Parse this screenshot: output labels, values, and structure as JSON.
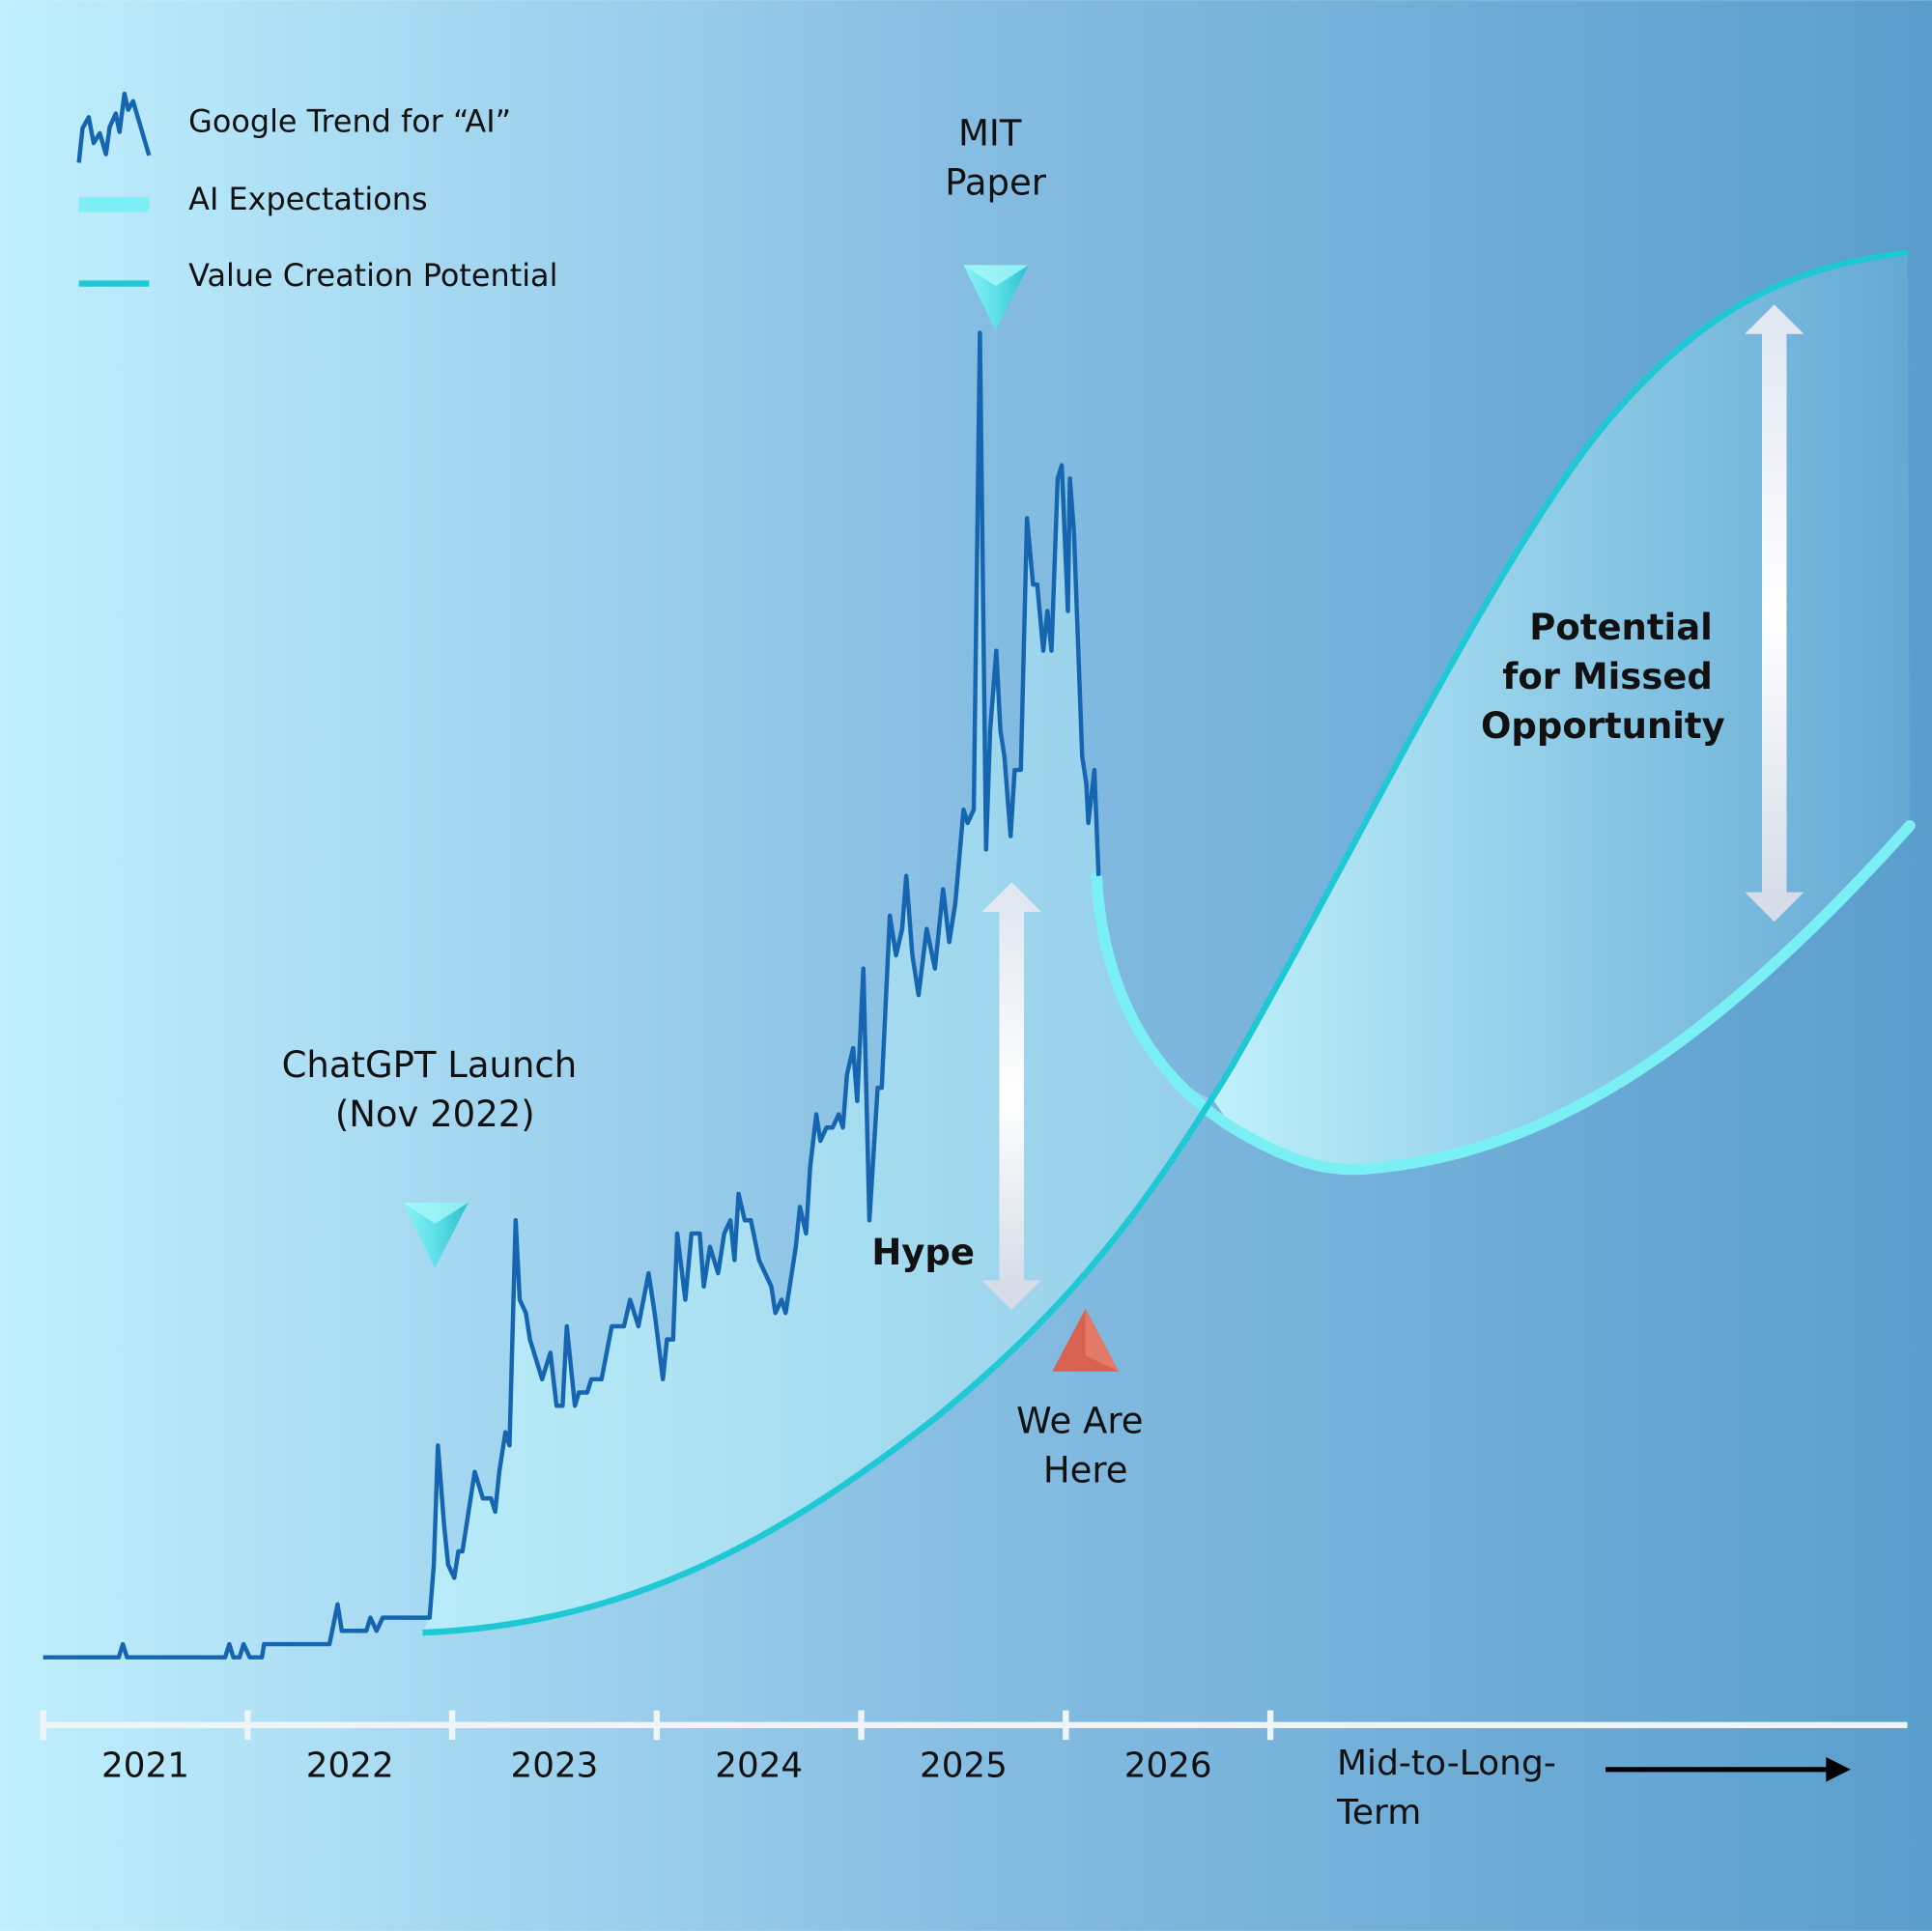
{
  "colors": {
    "background_left": "#c0effd",
    "background_right": "#5a9ecd",
    "trend": "#1565b0",
    "expectations": "#7af0f5",
    "value_creation": "#1ec8d4",
    "marker_cyan": "#4fdbe4",
    "marker_red": "#d9614f"
  },
  "chart_data": {
    "type": "line",
    "title": "",
    "legend_placement": "top-left",
    "legend": [
      {
        "label": "Google Trend for “AI”",
        "icon": "jagged-line-icon"
      },
      {
        "label": "AI Expectations",
        "icon": "thick-line-icon"
      },
      {
        "label": "Value Creation Potential",
        "icon": "line-icon"
      }
    ],
    "x_ticks": [
      "2021",
      "2022",
      "2023",
      "2024",
      "2025",
      "2026"
    ],
    "x_tail_label": "Mid-to-Long-Term",
    "grid": false,
    "series": [
      {
        "name": "Google Trend for “AI”",
        "x": [
          2021.0,
          2021.37,
          2021.39,
          2021.41,
          2021.89,
          2021.91,
          2021.93,
          2021.96,
          2021.98,
          2022.01,
          2022.07,
          2022.08,
          2022.4,
          2022.44,
          2022.46,
          2022.58,
          2022.6,
          2022.63,
          2022.66,
          2022.89,
          2022.91,
          2022.93,
          2022.96,
          2022.98,
          2023.01,
          2023.03,
          2023.05,
          2023.08,
          2023.11,
          2023.15,
          2023.19,
          2023.21,
          2023.23,
          2023.26,
          2023.28,
          2023.31,
          2023.33,
          2023.36,
          2023.38,
          2023.42,
          2023.44,
          2023.48,
          2023.51,
          2023.54,
          2023.56,
          2023.6,
          2023.62,
          2023.66,
          2023.68,
          2023.73,
          2023.78,
          2023.84,
          2023.87,
          2023.91,
          2023.96,
          2023.99,
          2024.03,
          2024.05,
          2024.08,
          2024.1,
          2024.14,
          2024.17,
          2024.21,
          2024.23,
          2024.26,
          2024.3,
          2024.33,
          2024.36,
          2024.38,
          2024.4,
          2024.43,
          2024.46,
          2024.5,
          2024.56,
          2024.58,
          2024.61,
          2024.63,
          2024.68,
          2024.7,
          2024.73,
          2024.75,
          2024.78,
          2024.8,
          2024.83,
          2024.86,
          2024.89,
          2024.91,
          2024.93,
          2024.96,
          2024.98,
          2025.01,
          2025.04,
          2025.08,
          2025.1,
          2025.14,
          2025.17,
          2025.2,
          2025.22,
          2025.25,
          2025.28,
          2025.32,
          2025.36,
          2025.4,
          2025.43,
          2025.46,
          2025.5,
          2025.52,
          2025.55,
          2025.58,
          2025.61,
          2025.63,
          2025.66,
          2025.68,
          2025.7,
          2025.73,
          2025.75,
          2025.78,
          2025.81,
          2025.84,
          2025.86,
          2025.89,
          2025.91,
          2025.93,
          2025.96,
          2025.98,
          2026.01,
          2026.02,
          2026.04,
          2026.08,
          2026.1,
          2026.11,
          2026.14,
          2026.16
        ],
        "y": [
          0,
          0,
          1,
          0,
          0,
          1,
          0,
          0,
          1,
          0,
          0,
          1,
          1,
          4,
          2,
          2,
          3,
          2,
          3,
          3,
          7,
          16,
          10,
          7,
          6,
          8,
          8,
          11,
          14,
          12,
          12,
          11,
          14,
          17,
          16,
          33,
          27,
          26,
          24,
          22,
          21,
          23,
          19,
          19,
          25,
          19,
          20,
          20,
          21,
          21,
          25,
          25,
          27,
          25,
          29,
          26,
          21,
          24,
          24,
          32,
          27,
          32,
          32,
          28,
          31,
          29,
          32,
          33,
          30,
          35,
          33,
          33,
          30,
          28,
          26,
          27,
          26,
          31,
          34,
          32,
          37,
          41,
          39,
          40,
          40,
          41,
          40,
          44,
          46,
          42,
          52,
          33,
          43,
          43,
          56,
          53,
          55,
          59,
          53,
          50,
          55,
          52,
          58,
          54,
          57,
          64,
          63,
          64,
          100,
          61,
          70,
          76,
          70,
          68,
          62,
          67,
          67,
          86,
          81,
          81,
          76,
          79,
          76,
          89,
          90,
          79,
          89,
          85,
          68,
          66,
          63,
          67,
          59
        ]
      },
      {
        "name": "AI Expectations"
      },
      {
        "name": "Value Creation Potential"
      }
    ],
    "annotations": {
      "chatgpt": [
        "ChatGPT Launch",
        "(Nov 2022)"
      ],
      "mit": [
        "MIT",
        "Paper"
      ],
      "here": [
        "We Are",
        "Here"
      ],
      "hype": "Hype",
      "missed": [
        "Potential",
        "for Missed",
        "Opportunity"
      ]
    }
  }
}
